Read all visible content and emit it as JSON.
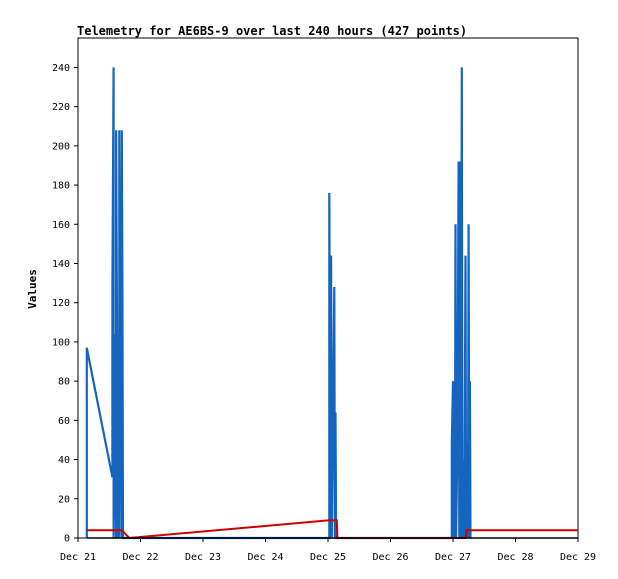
{
  "chart_data": {
    "type": "line",
    "title": "Telemetry for AE6BS-9 over last 240 hours (427 points)",
    "xlabel": "",
    "ylabel": "Values",
    "x_unit": "days",
    "xlim": [
      0,
      8
    ],
    "ylim": [
      0,
      255
    ],
    "x_ticks": [
      {
        "label": "Dec 21",
        "value": 0
      },
      {
        "label": "Dec 22",
        "value": 1
      },
      {
        "label": "Dec 23",
        "value": 2
      },
      {
        "label": "Dec 24",
        "value": 3
      },
      {
        "label": "Dec 25",
        "value": 4
      },
      {
        "label": "Dec 26",
        "value": 5
      },
      {
        "label": "Dec 27",
        "value": 6
      },
      {
        "label": "Dec 28",
        "value": 7
      },
      {
        "label": "Dec 29",
        "value": 8
      }
    ],
    "y_ticks": [
      0,
      20,
      40,
      60,
      80,
      100,
      120,
      140,
      160,
      180,
      200,
      220,
      240
    ],
    "grid": false,
    "legend": "none",
    "series": [
      {
        "color": "#1565c0",
        "points": [
          [
            0.14,
            0
          ],
          [
            0.14,
            97
          ],
          [
            0.55,
            31
          ],
          [
            0.55,
            128
          ],
          [
            0.57,
            240
          ],
          [
            0.57,
            0
          ],
          [
            0.58,
            104
          ],
          [
            0.61,
            0
          ],
          [
            0.61,
            208
          ],
          [
            0.64,
            0
          ],
          [
            0.64,
            104
          ],
          [
            0.66,
            0
          ],
          [
            0.66,
            208
          ],
          [
            0.67,
            144
          ],
          [
            0.7,
            0
          ],
          [
            0.7,
            208
          ],
          [
            0.71,
            128
          ],
          [
            0.72,
            0
          ],
          [
            4.02,
            0
          ],
          [
            4.02,
            176
          ],
          [
            4.04,
            0
          ],
          [
            4.05,
            144
          ],
          [
            4.06,
            0
          ],
          [
            4.1,
            128
          ],
          [
            4.11,
            0
          ],
          [
            4.12,
            64
          ],
          [
            4.13,
            0
          ],
          [
            5.98,
            0
          ],
          [
            5.98,
            48
          ],
          [
            6.0,
            80
          ],
          [
            6.01,
            0
          ],
          [
            6.02,
            80
          ],
          [
            6.03,
            0
          ],
          [
            6.04,
            160
          ],
          [
            6.05,
            0
          ],
          [
            6.07,
            48
          ],
          [
            6.09,
            192
          ],
          [
            6.1,
            0
          ],
          [
            6.11,
            192
          ],
          [
            6.13,
            0
          ],
          [
            6.14,
            240
          ],
          [
            6.15,
            0
          ],
          [
            6.17,
            40
          ],
          [
            6.18,
            0
          ],
          [
            6.2,
            144
          ],
          [
            6.21,
            0
          ],
          [
            6.22,
            16
          ],
          [
            6.23,
            48
          ],
          [
            6.24,
            0
          ],
          [
            6.25,
            160
          ],
          [
            6.26,
            0
          ],
          [
            6.27,
            80
          ],
          [
            6.28,
            0
          ]
        ]
      },
      {
        "color": "#cc0000",
        "points": [
          [
            0.14,
            4
          ],
          [
            0.7,
            4
          ],
          [
            0.82,
            0
          ],
          [
            4.0,
            9
          ],
          [
            4.14,
            9
          ],
          [
            4.15,
            0
          ],
          [
            6.2,
            0
          ],
          [
            6.22,
            4
          ],
          [
            8.0,
            4
          ]
        ]
      },
      {
        "color": "#000000",
        "points": [
          [
            0.14,
            0
          ],
          [
            8.0,
            0
          ]
        ]
      }
    ]
  }
}
